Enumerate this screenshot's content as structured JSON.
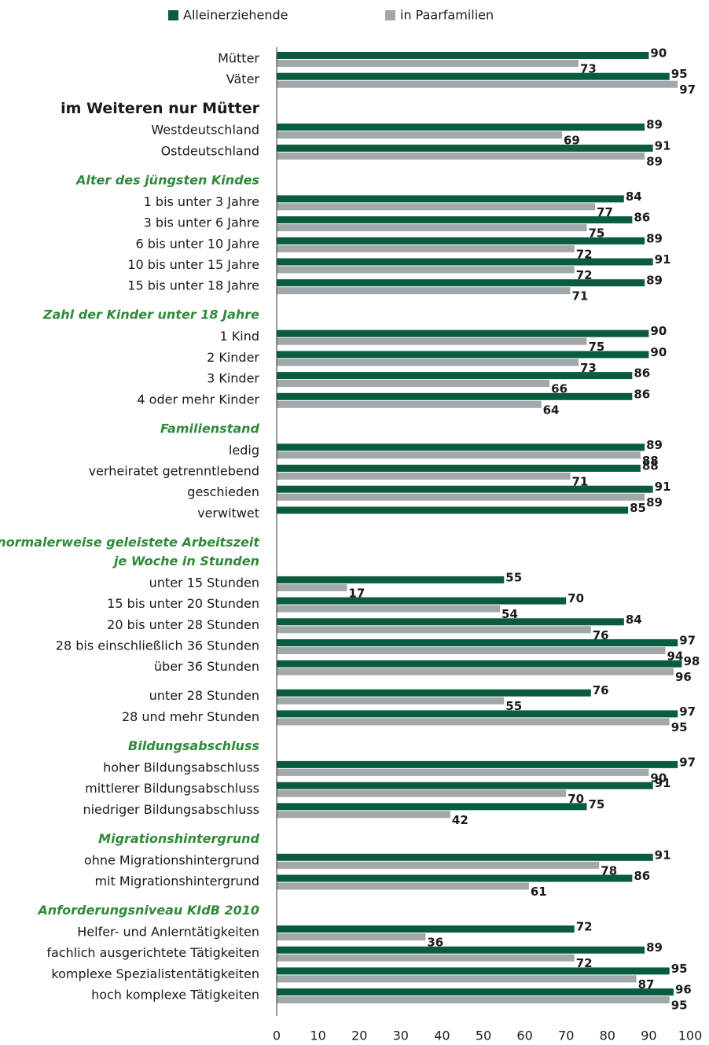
{
  "chart_data": {
    "type": "bar",
    "orientation": "horizontal",
    "xlim": [
      0,
      100
    ],
    "xticks": [
      0,
      10,
      20,
      30,
      40,
      50,
      60,
      70,
      80,
      90,
      100
    ],
    "series": [
      {
        "name": "Alleinerziehende",
        "color": "#0a5c3e"
      },
      {
        "name": "in Paarfamilien",
        "color": "#a2a7ab"
      }
    ],
    "sections": [
      {
        "categories": [
          "Mütter",
          "Väter"
        ],
        "values": [
          [
            90,
            95
          ],
          [
            73,
            97
          ]
        ]
      },
      {
        "title_lines": [
          "im Weiteren nur Mütter"
        ],
        "title_style": "bold",
        "categories": [
          "Westdeutschland",
          "Ostdeutschland"
        ],
        "values": [
          [
            89,
            91
          ],
          [
            69,
            89
          ]
        ]
      },
      {
        "title_lines": [
          "Alter des jüngsten Kindes"
        ],
        "title_style": "italic",
        "categories": [
          "1 bis unter 3 Jahre",
          "3 bis unter 6 Jahre",
          "6 bis unter 10 Jahre",
          "10 bis unter 15 Jahre",
          "15 bis unter 18 Jahre"
        ],
        "values": [
          [
            84,
            86,
            89,
            91,
            89
          ],
          [
            77,
            75,
            72,
            72,
            71
          ]
        ]
      },
      {
        "title_lines": [
          "Zahl der Kinder unter 18 Jahre"
        ],
        "title_style": "italic",
        "categories": [
          "1 Kind",
          "2 Kinder",
          "3 Kinder",
          "4 oder mehr Kinder"
        ],
        "values": [
          [
            90,
            90,
            86,
            86
          ],
          [
            75,
            73,
            66,
            64
          ]
        ]
      },
      {
        "title_lines": [
          "Familienstand"
        ],
        "title_style": "italic",
        "categories": [
          "ledig",
          "verheiratet getrenntlebend",
          "geschieden",
          "verwitwet"
        ],
        "values": [
          [
            89,
            88,
            91,
            85
          ],
          [
            88,
            71,
            89,
            null
          ]
        ]
      },
      {
        "title_lines": [
          "normalerweise geleistete Arbeitszeit",
          "je Woche in Stunden"
        ],
        "title_style": "italic",
        "categories": [
          "unter 15 Stunden",
          "15 bis unter 20 Stunden",
          "20 bis unter 28 Stunden",
          "28 bis einschließlich 36 Stunden",
          "über 36 Stunden"
        ],
        "values": [
          [
            55,
            70,
            84,
            97,
            98
          ],
          [
            17,
            54,
            76,
            94,
            96
          ]
        ]
      },
      {
        "categories": [
          "unter 28 Stunden",
          "28 und mehr Stunden"
        ],
        "values": [
          [
            76,
            97
          ],
          [
            55,
            95
          ]
        ]
      },
      {
        "title_lines": [
          "Bildungsabschluss"
        ],
        "title_style": "italic",
        "categories": [
          "hoher Bildungsabschluss",
          "mittlerer Bildungsabschluss",
          "niedriger Bildungsabschluss"
        ],
        "values": [
          [
            97,
            91,
            75
          ],
          [
            90,
            70,
            42
          ]
        ]
      },
      {
        "title_lines": [
          "Migrationshintergrund"
        ],
        "title_style": "italic",
        "categories": [
          "ohne Migrationshintergrund",
          "mit Migrationshintergrund"
        ],
        "values": [
          [
            91,
            86
          ],
          [
            78,
            61
          ]
        ]
      },
      {
        "title_lines": [
          "Anforderungsniveau KIdB 2010"
        ],
        "title_style": "italic",
        "categories": [
          "Helfer- und Anlerntätigkeiten",
          "fachlich ausgerichtete Tätigkeiten",
          "komplexe Spezialistentätigkeiten",
          "hoch komplexe Tätigkeiten"
        ],
        "values": [
          [
            72,
            89,
            95,
            96
          ],
          [
            36,
            72,
            87,
            95
          ]
        ]
      }
    ]
  }
}
